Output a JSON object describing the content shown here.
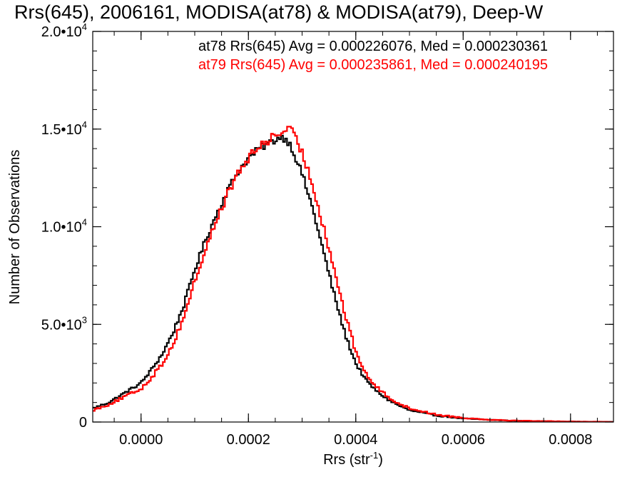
{
  "chart_data": {
    "type": "histogram",
    "title": "Rrs(645), 2006161, MODISA(at78) & MODISA(at79), Deep-W",
    "xlabel": {
      "main": "Rrs (str",
      "sup": "-1",
      "close": ")"
    },
    "ylabel": "Number of Observations",
    "xlim": [
      -9e-05,
      0.00088
    ],
    "ylim": [
      0,
      20000
    ],
    "x_ticks": [
      {
        "value": 0.0,
        "label": "0.0000"
      },
      {
        "value": 0.0002,
        "label": "0.0002"
      },
      {
        "value": 0.0004,
        "label": "0.0004"
      },
      {
        "value": 0.0006,
        "label": "0.0006"
      },
      {
        "value": 0.0008,
        "label": "0.0008"
      }
    ],
    "y_ticks": [
      {
        "value": 0,
        "label": "0",
        "sup": ""
      },
      {
        "value": 5000,
        "label": "5.0•10",
        "sup": "3"
      },
      {
        "value": 10000,
        "label": "1.0•10",
        "sup": "4"
      },
      {
        "value": 15000,
        "label": "1.5•10",
        "sup": "4"
      },
      {
        "value": 20000,
        "label": "2.0•10",
        "sup": "4"
      }
    ],
    "grid": false,
    "legend_placement": "top-right",
    "series": [
      {
        "name": "at78",
        "legend_text": "at78 Rrs(645) Avg = 0.000226076, Med = 0.000230361",
        "color": "#000000",
        "x": [
          -9e-05,
          -6e-05,
          -3e-05,
          0.0,
          2e-05,
          4e-05,
          6e-05,
          8e-05,
          0.0001,
          0.00012,
          0.00014,
          0.00016,
          0.00018,
          0.0002,
          0.00022,
          0.00024,
          0.00026,
          0.00027,
          0.00028,
          0.0003,
          0.00032,
          0.00034,
          0.00036,
          0.00038,
          0.0004,
          0.00042,
          0.00044,
          0.00046,
          0.00048,
          0.0005,
          0.00055,
          0.0006,
          0.00065,
          0.0007,
          0.00075,
          0.0008,
          0.00088
        ],
        "y": [
          700,
          1000,
          1500,
          2000,
          2700,
          3500,
          4600,
          6000,
          7800,
          9300,
          10600,
          11800,
          12800,
          13500,
          14000,
          14300,
          14600,
          14500,
          14100,
          12700,
          10900,
          8700,
          6500,
          4500,
          3000,
          2100,
          1550,
          1150,
          850,
          600,
          330,
          180,
          110,
          60,
          40,
          20,
          5
        ],
        "noise_amp": 200
      },
      {
        "name": "at79",
        "legend_text": "at79 Rrs(645) Avg = 0.000235861, Med = 0.000240195",
        "color": "#ff0000",
        "x": [
          -9e-05,
          -6e-05,
          -3e-05,
          0.0,
          2e-05,
          4e-05,
          6e-05,
          8e-05,
          0.0001,
          0.00012,
          0.00014,
          0.00016,
          0.00018,
          0.0002,
          0.00022,
          0.00024,
          0.00026,
          0.00027,
          0.00028,
          0.0003,
          0.00032,
          0.00034,
          0.00036,
          0.00038,
          0.0004,
          0.00042,
          0.00044,
          0.00046,
          0.00048,
          0.0005,
          0.00055,
          0.0006,
          0.00065,
          0.0007,
          0.00075,
          0.0008,
          0.00088
        ],
        "y": [
          600,
          900,
          1300,
          1700,
          2300,
          3000,
          4000,
          5400,
          7200,
          8800,
          10300,
          11600,
          12700,
          13500,
          14100,
          14500,
          14800,
          15000,
          14900,
          13800,
          12100,
          10000,
          7800,
          5500,
          3600,
          2400,
          1750,
          1300,
          950,
          700,
          380,
          210,
          120,
          70,
          45,
          25,
          5
        ],
        "noise_amp": 250
      }
    ]
  }
}
